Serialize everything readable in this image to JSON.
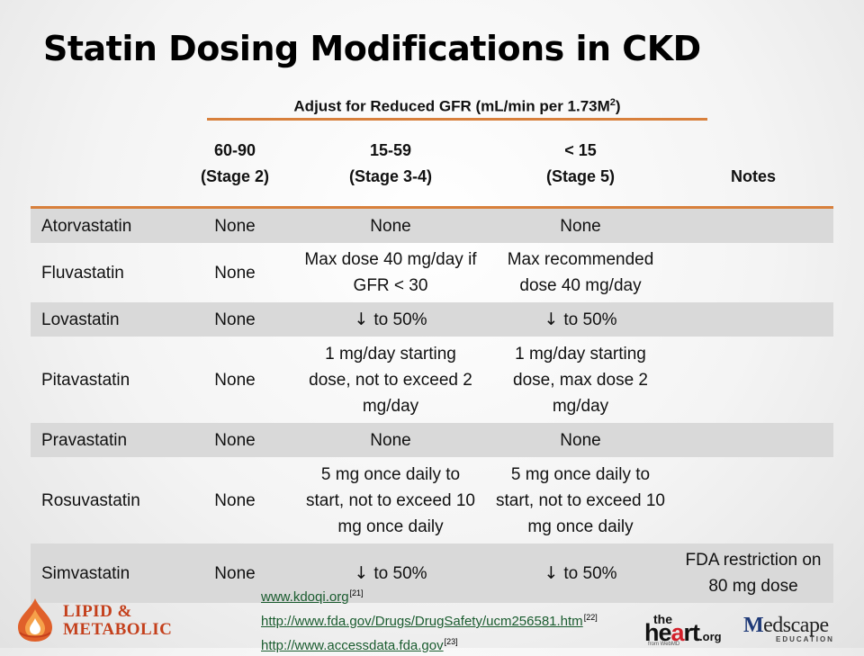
{
  "slide": {
    "title": "Statin Dosing Modifications in CKD"
  },
  "table": {
    "group_header_text": "Adjust for Reduced GFR (mL/min per 1.73M",
    "group_header_sup": "2",
    "group_header_close": ")",
    "columns": [
      {
        "line1": "",
        "line2": ""
      },
      {
        "line1": "60-90",
        "line2": "(Stage 2)"
      },
      {
        "line1": "15-59",
        "line2": "(Stage 3-4)"
      },
      {
        "line1": "< 15",
        "line2": "(Stage 5)"
      },
      {
        "line1": "Notes",
        "line2": ""
      }
    ],
    "arrow_glyph": "↓",
    "rows": [
      {
        "drug": "Atorvastatin",
        "stage2": "None",
        "stage34": "None",
        "stage5": "None",
        "notes": ""
      },
      {
        "drug": "Fluvastatin",
        "stage2": "None",
        "stage34": "Max dose 40 mg/day if GFR < 30",
        "stage5": "Max recommended dose 40 mg/day",
        "notes": ""
      },
      {
        "drug": "Lovastatin",
        "stage2": "None",
        "stage34": "to 50%",
        "stage5": "to 50%",
        "notes": ""
      },
      {
        "drug": "Pitavastatin",
        "stage2": "None",
        "stage34": "1 mg/day starting dose, not to exceed 2 mg/day",
        "stage5": "1 mg/day starting dose, max dose 2 mg/day",
        "notes": ""
      },
      {
        "drug": "Pravastatin",
        "stage2": "None",
        "stage34": "None",
        "stage5": "None",
        "notes": ""
      },
      {
        "drug": "Rosuvastatin",
        "stage2": "None",
        "stage34": "5 mg once daily to start, not to exceed 10 mg once daily",
        "stage5": "5 mg once daily to start, not to exceed 10 mg once daily",
        "notes": ""
      },
      {
        "drug": "Simvastatin",
        "stage2": "None",
        "stage34": "to 50%",
        "stage5": "to 50%",
        "notes": "FDA restriction on 80 mg dose"
      }
    ]
  },
  "references": [
    {
      "url": "www.kdoqi.org",
      "ref": "[21]"
    },
    {
      "url": "http://www.fda.gov/Drugs/DrugSafety/ucm256581.htm",
      "ref": "[22]"
    },
    {
      "url": "http://www.accessdata.fda.gov",
      "ref": "[23]"
    }
  ],
  "logos": {
    "lipid_line1": "LIPID &",
    "lipid_line2": "METABOLIC",
    "heart_the": "the",
    "heart_main_a": "he",
    "heart_main_b": "a",
    "heart_main_c": "rt",
    "heart_org": ".org",
    "heart_from": "from WebMD",
    "med_m": "M",
    "med_rest": "edscape",
    "med_edu": "EDUCATION"
  },
  "colors": {
    "accent_orange": "#d8803c",
    "row_shade": "#d9d9d9",
    "link_green": "#1a5c2f",
    "lipid_red": "#c4401c",
    "heart_red": "#d21f2a",
    "medscape_blue": "#1f3a78"
  }
}
